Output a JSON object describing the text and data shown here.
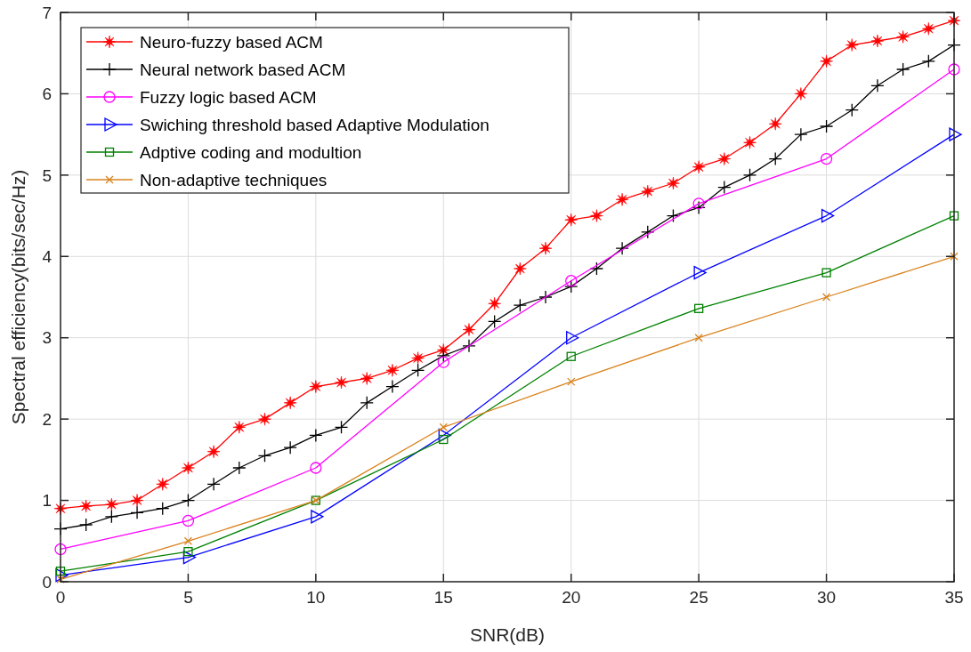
{
  "chart_data": {
    "type": "line",
    "xlabel": "SNR(dB)",
    "ylabel": "Spectral efficiency(bits/sec/Hz)",
    "xlim": [
      0,
      35
    ],
    "ylim": [
      0,
      7
    ],
    "xticks": [
      0,
      5,
      10,
      15,
      20,
      25,
      30,
      35
    ],
    "yticks": [
      0,
      1,
      2,
      3,
      4,
      5,
      6,
      7
    ],
    "grid": true,
    "legend": "top left",
    "line_style": "solid",
    "series": [
      {
        "name": "Neuro-fuzzy based ACM",
        "color": "#ff0000",
        "marker": "star",
        "x": [
          0,
          1,
          2,
          3,
          4,
          5,
          6,
          7,
          8,
          9,
          10,
          11,
          12,
          13,
          14,
          15,
          16,
          17,
          18,
          19,
          20,
          21,
          22,
          23,
          24,
          25,
          26,
          27,
          28,
          29,
          30,
          31,
          32,
          33,
          34,
          35
        ],
        "values": [
          0.9,
          0.93,
          0.95,
          1.0,
          1.2,
          1.4,
          1.6,
          1.9,
          2.0,
          2.2,
          2.4,
          2.45,
          2.5,
          2.6,
          2.75,
          2.85,
          3.1,
          3.42,
          3.85,
          4.1,
          4.45,
          4.5,
          4.7,
          4.8,
          4.9,
          5.1,
          5.2,
          5.4,
          5.63,
          6.0,
          6.4,
          6.6,
          6.65,
          6.7,
          6.8,
          6.9
        ]
      },
      {
        "name": "Neural network based ACM",
        "color": "#000000",
        "marker": "cross",
        "x": [
          0,
          1,
          2,
          3,
          4,
          5,
          6,
          7,
          8,
          9,
          10,
          11,
          12,
          13,
          14,
          15,
          16,
          17,
          18,
          19,
          20,
          21,
          22,
          23,
          24,
          25,
          26,
          27,
          28,
          29,
          30,
          31,
          32,
          33,
          34,
          35
        ],
        "values": [
          0.65,
          0.7,
          0.8,
          0.85,
          0.9,
          1.0,
          1.2,
          1.4,
          1.55,
          1.65,
          1.8,
          1.9,
          2.2,
          2.4,
          2.6,
          2.78,
          2.9,
          3.2,
          3.4,
          3.5,
          3.63,
          3.85,
          4.1,
          4.3,
          4.5,
          4.6,
          4.85,
          5.0,
          5.2,
          5.5,
          5.6,
          5.8,
          6.1,
          6.3,
          6.4,
          6.6
        ]
      },
      {
        "name": "Fuzzy logic based ACM",
        "color": "#ff00ff",
        "marker": "circle",
        "x": [
          0,
          5,
          10,
          15,
          20,
          25,
          30,
          35
        ],
        "values": [
          0.4,
          0.75,
          1.4,
          2.7,
          3.7,
          4.65,
          5.2,
          6.3
        ]
      },
      {
        "name": "Swiching threshold based Adaptive Modulation",
        "color": "#0000ff",
        "marker": "triangle",
        "x": [
          0,
          5,
          10,
          15,
          20,
          25,
          30,
          35
        ],
        "values": [
          0.08,
          0.3,
          0.8,
          1.8,
          3.0,
          3.8,
          4.5,
          5.5
        ]
      },
      {
        "name": "Adptive coding and modultion",
        "color": "#008000",
        "marker": "square",
        "x": [
          0,
          5,
          10,
          15,
          20,
          25,
          30,
          35
        ],
        "values": [
          0.13,
          0.37,
          1.0,
          1.75,
          2.77,
          3.36,
          3.8,
          4.5
        ]
      },
      {
        "name": "Non-adaptive techniques",
        "color": "#d9821c",
        "marker": "x",
        "x": [
          0,
          5,
          10,
          15,
          20,
          25,
          30,
          35
        ],
        "values": [
          0.03,
          0.5,
          1.0,
          1.9,
          2.46,
          3.0,
          3.5,
          4.0
        ]
      }
    ]
  }
}
